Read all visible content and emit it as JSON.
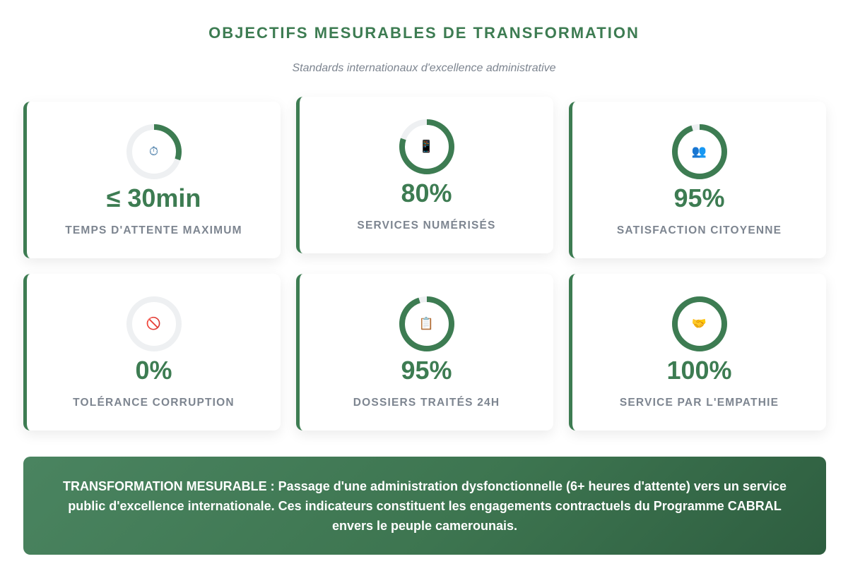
{
  "header": {
    "title": "OBJECTIFS MESURABLES DE TRANSFORMATION",
    "subtitle": "Standards internationaux d'excellence administrative"
  },
  "metrics": [
    {
      "value": "≤ 30min",
      "label": "TEMPS D'ATTENTE MAXIMUM",
      "icon": "stopwatch-icon",
      "glyph": "⏱",
      "progress": 0.3
    },
    {
      "value": "80%",
      "label": "SERVICES NUMÉRISÉS",
      "icon": "mobile-phone-icon",
      "glyph": "📱",
      "progress": 0.8
    },
    {
      "value": "95%",
      "label": "SATISFACTION CITOYENNE",
      "icon": "people-icon",
      "glyph": "👥",
      "progress": 0.95
    },
    {
      "value": "0%",
      "label": "TOLÉRANCE CORRUPTION",
      "icon": "prohibited-icon",
      "glyph": "🚫",
      "progress": 0.0
    },
    {
      "value": "95%",
      "label": "DOSSIERS TRAITÉS 24H",
      "icon": "clipboard-icon",
      "glyph": "📋",
      "progress": 0.95
    },
    {
      "value": "100%",
      "label": "SERVICE PAR L'EMPATHIE",
      "icon": "handshake-icon",
      "glyph": "🤝",
      "progress": 1.0
    }
  ],
  "banner": {
    "text": "TRANSFORMATION MESURABLE : Passage d'une administration dysfonctionnelle (6+ heures d'attente) vers un service public d'excellence internationale. Ces indicateurs constituent les engagements contractuels du Programme CABRAL envers le peuple camerounais."
  },
  "colors": {
    "accent": "#3d7c52",
    "track": "#eef0f2",
    "muted_text": "#7d8590"
  }
}
